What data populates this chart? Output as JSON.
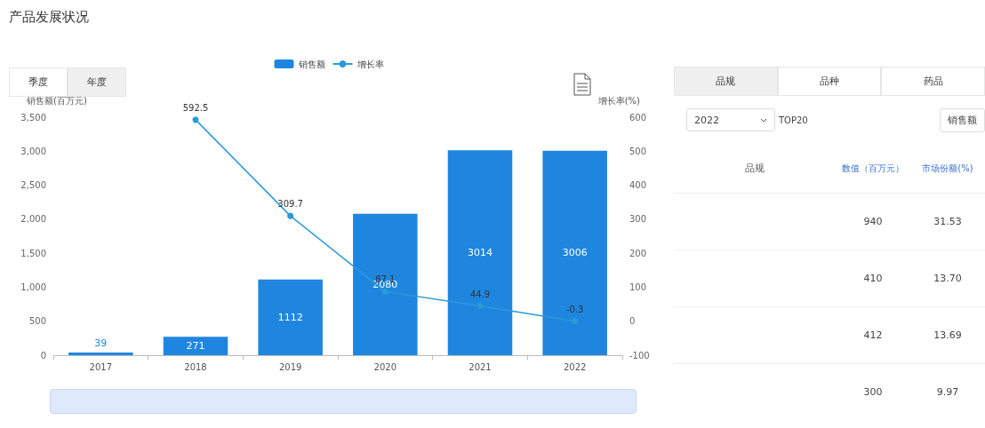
{
  "chart_data": [
    {
      "type": "bar",
      "title": "产品发展状况",
      "annotations": [
        "季度",
        "年度"
      ],
      "categories": [
        "2017",
        "2018",
        "2019",
        "2020",
        "2021",
        "2022"
      ],
      "series": [
        {
          "name": "销售额",
          "type": "bar",
          "color": "#1f86e0",
          "values": [
            39,
            271,
            1112,
            2080,
            3014,
            3006
          ]
        },
        {
          "name": "增长率",
          "type": "line",
          "axis": "y2",
          "color": "#2a9ad8",
          "values": [
            null,
            592.5,
            309.7,
            87.1,
            44.9,
            -0.3
          ]
        }
      ],
      "ylabel": "销售额(百万元)",
      "y2label": "增长率(%)",
      "ylim": [
        0,
        3500
      ],
      "yticks": [
        0,
        {
          "value": 500,
          "label": "500"
        },
        {
          "value": 1000,
          "label": "1,000"
        },
        {
          "value": 1500,
          "label": "1,500"
        },
        {
          "value": 2000,
          "label": "2,000"
        },
        {
          "value": 2500,
          "label": "2,500"
        },
        {
          "value": 3000,
          "label": "3,000"
        },
        {
          "value": 3500,
          "label": "3,500"
        }
      ],
      "y2lim": [
        -100,
        600
      ],
      "y2ticks": [
        -100,
        0,
        100,
        200,
        300,
        400,
        500,
        600
      ],
      "data_labels": true,
      "legend": "top",
      "marker": "circle",
      "grid": false
    },
    {
      "type": "other",
      "annotations": [
        "品规",
        "品种",
        "药品",
        "2022",
        "TOP20",
        "销售额",
        "品规",
        "数值（百万元）",
        "市场份额(%)",
        "940",
        "31.53",
        "410",
        "13.70",
        "412",
        "13.69",
        "300",
        "9.97"
      ]
    }
  ]
}
